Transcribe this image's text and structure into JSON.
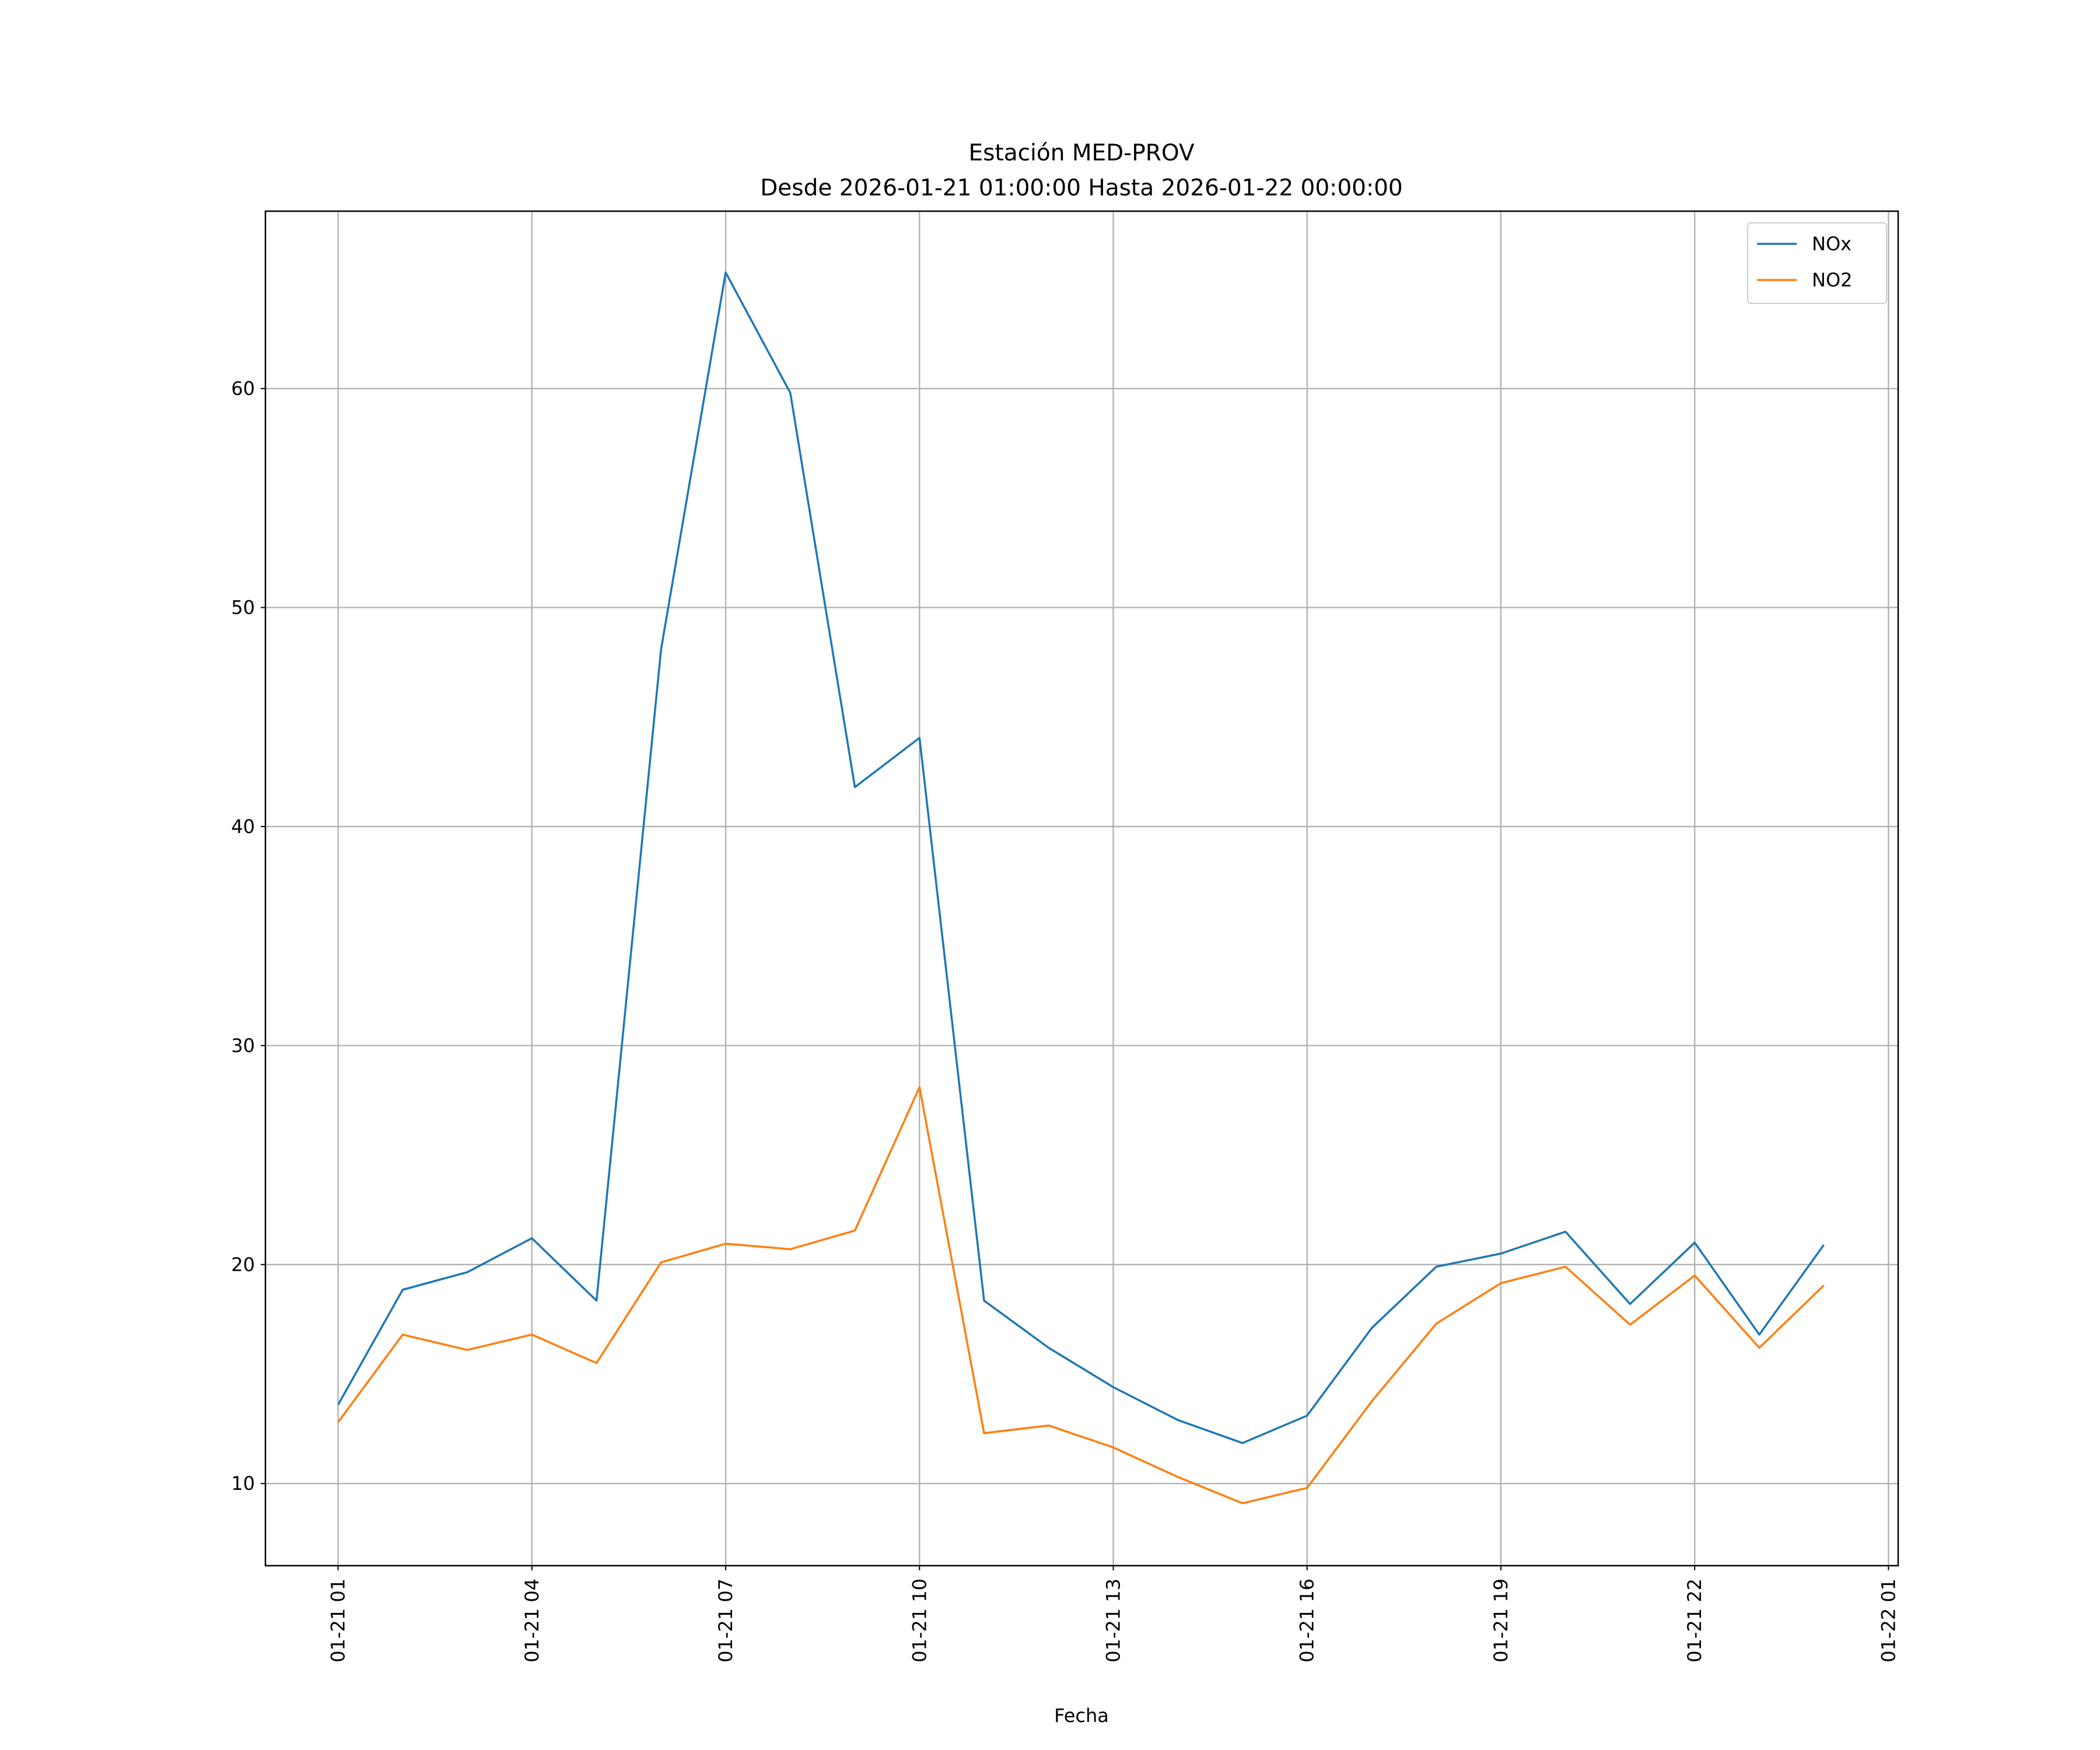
{
  "chart_data": {
    "type": "line",
    "title": "Estación MED-PROV",
    "subtitle": "Desde 2026-01-21 01:00:00 Hasta 2026-01-22 00:00:00",
    "xlabel": "Fecha",
    "ylabel": "",
    "grid": true,
    "legend_position": "top-right",
    "ylim": [
      6.25,
      68.1
    ],
    "xlim": [
      "2026-01-20T23:52:30",
      "2026-01-22T01:09:00"
    ],
    "yticks": [
      10,
      20,
      30,
      40,
      50,
      60
    ],
    "xticks": [
      {
        "t": "2026-01-21T01:00:00",
        "label": "01-21 01"
      },
      {
        "t": "2026-01-21T04:00:00",
        "label": "01-21 04"
      },
      {
        "t": "2026-01-21T07:00:00",
        "label": "01-21 07"
      },
      {
        "t": "2026-01-21T10:00:00",
        "label": "01-21 10"
      },
      {
        "t": "2026-01-21T13:00:00",
        "label": "01-21 13"
      },
      {
        "t": "2026-01-21T16:00:00",
        "label": "01-21 16"
      },
      {
        "t": "2026-01-21T19:00:00",
        "label": "01-21 19"
      },
      {
        "t": "2026-01-21T22:00:00",
        "label": "01-21 22"
      },
      {
        "t": "2026-01-22T01:00:00",
        "label": "01-22 01"
      }
    ],
    "x": [
      "2026-01-21T01:00:00",
      "2026-01-21T02:00:00",
      "2026-01-21T03:00:00",
      "2026-01-21T04:00:00",
      "2026-01-21T05:00:00",
      "2026-01-21T06:00:00",
      "2026-01-21T07:00:00",
      "2026-01-21T08:00:00",
      "2026-01-21T09:00:00",
      "2026-01-21T10:00:00",
      "2026-01-21T11:00:00",
      "2026-01-21T12:00:00",
      "2026-01-21T13:00:00",
      "2026-01-21T14:00:00",
      "2026-01-21T15:00:00",
      "2026-01-21T16:00:00",
      "2026-01-21T17:00:00",
      "2026-01-21T18:00:00",
      "2026-01-21T19:00:00",
      "2026-01-21T20:00:00",
      "2026-01-21T21:00:00",
      "2026-01-21T22:00:00",
      "2026-01-21T23:00:00",
      "2026-01-22T00:00:00"
    ],
    "series": [
      {
        "name": "NOx",
        "color": "#1f77b4",
        "values": [
          13.6,
          18.85,
          19.65,
          21.2,
          18.35,
          48.1,
          65.3,
          59.8,
          41.8,
          44.05,
          18.35,
          16.2,
          14.4,
          12.9,
          11.85,
          13.1,
          17.1,
          19.9,
          20.5,
          21.5,
          18.2,
          21.0,
          16.8,
          20.9
        ]
      },
      {
        "name": "NO2",
        "color": "#ff7f0e",
        "values": [
          12.8,
          16.8,
          16.1,
          16.8,
          15.5,
          20.1,
          20.95,
          20.7,
          21.55,
          28.1,
          12.3,
          12.65,
          11.65,
          10.3,
          9.1,
          9.8,
          13.75,
          17.3,
          19.15,
          19.9,
          17.25,
          19.5,
          16.2,
          19.05
        ]
      }
    ]
  }
}
